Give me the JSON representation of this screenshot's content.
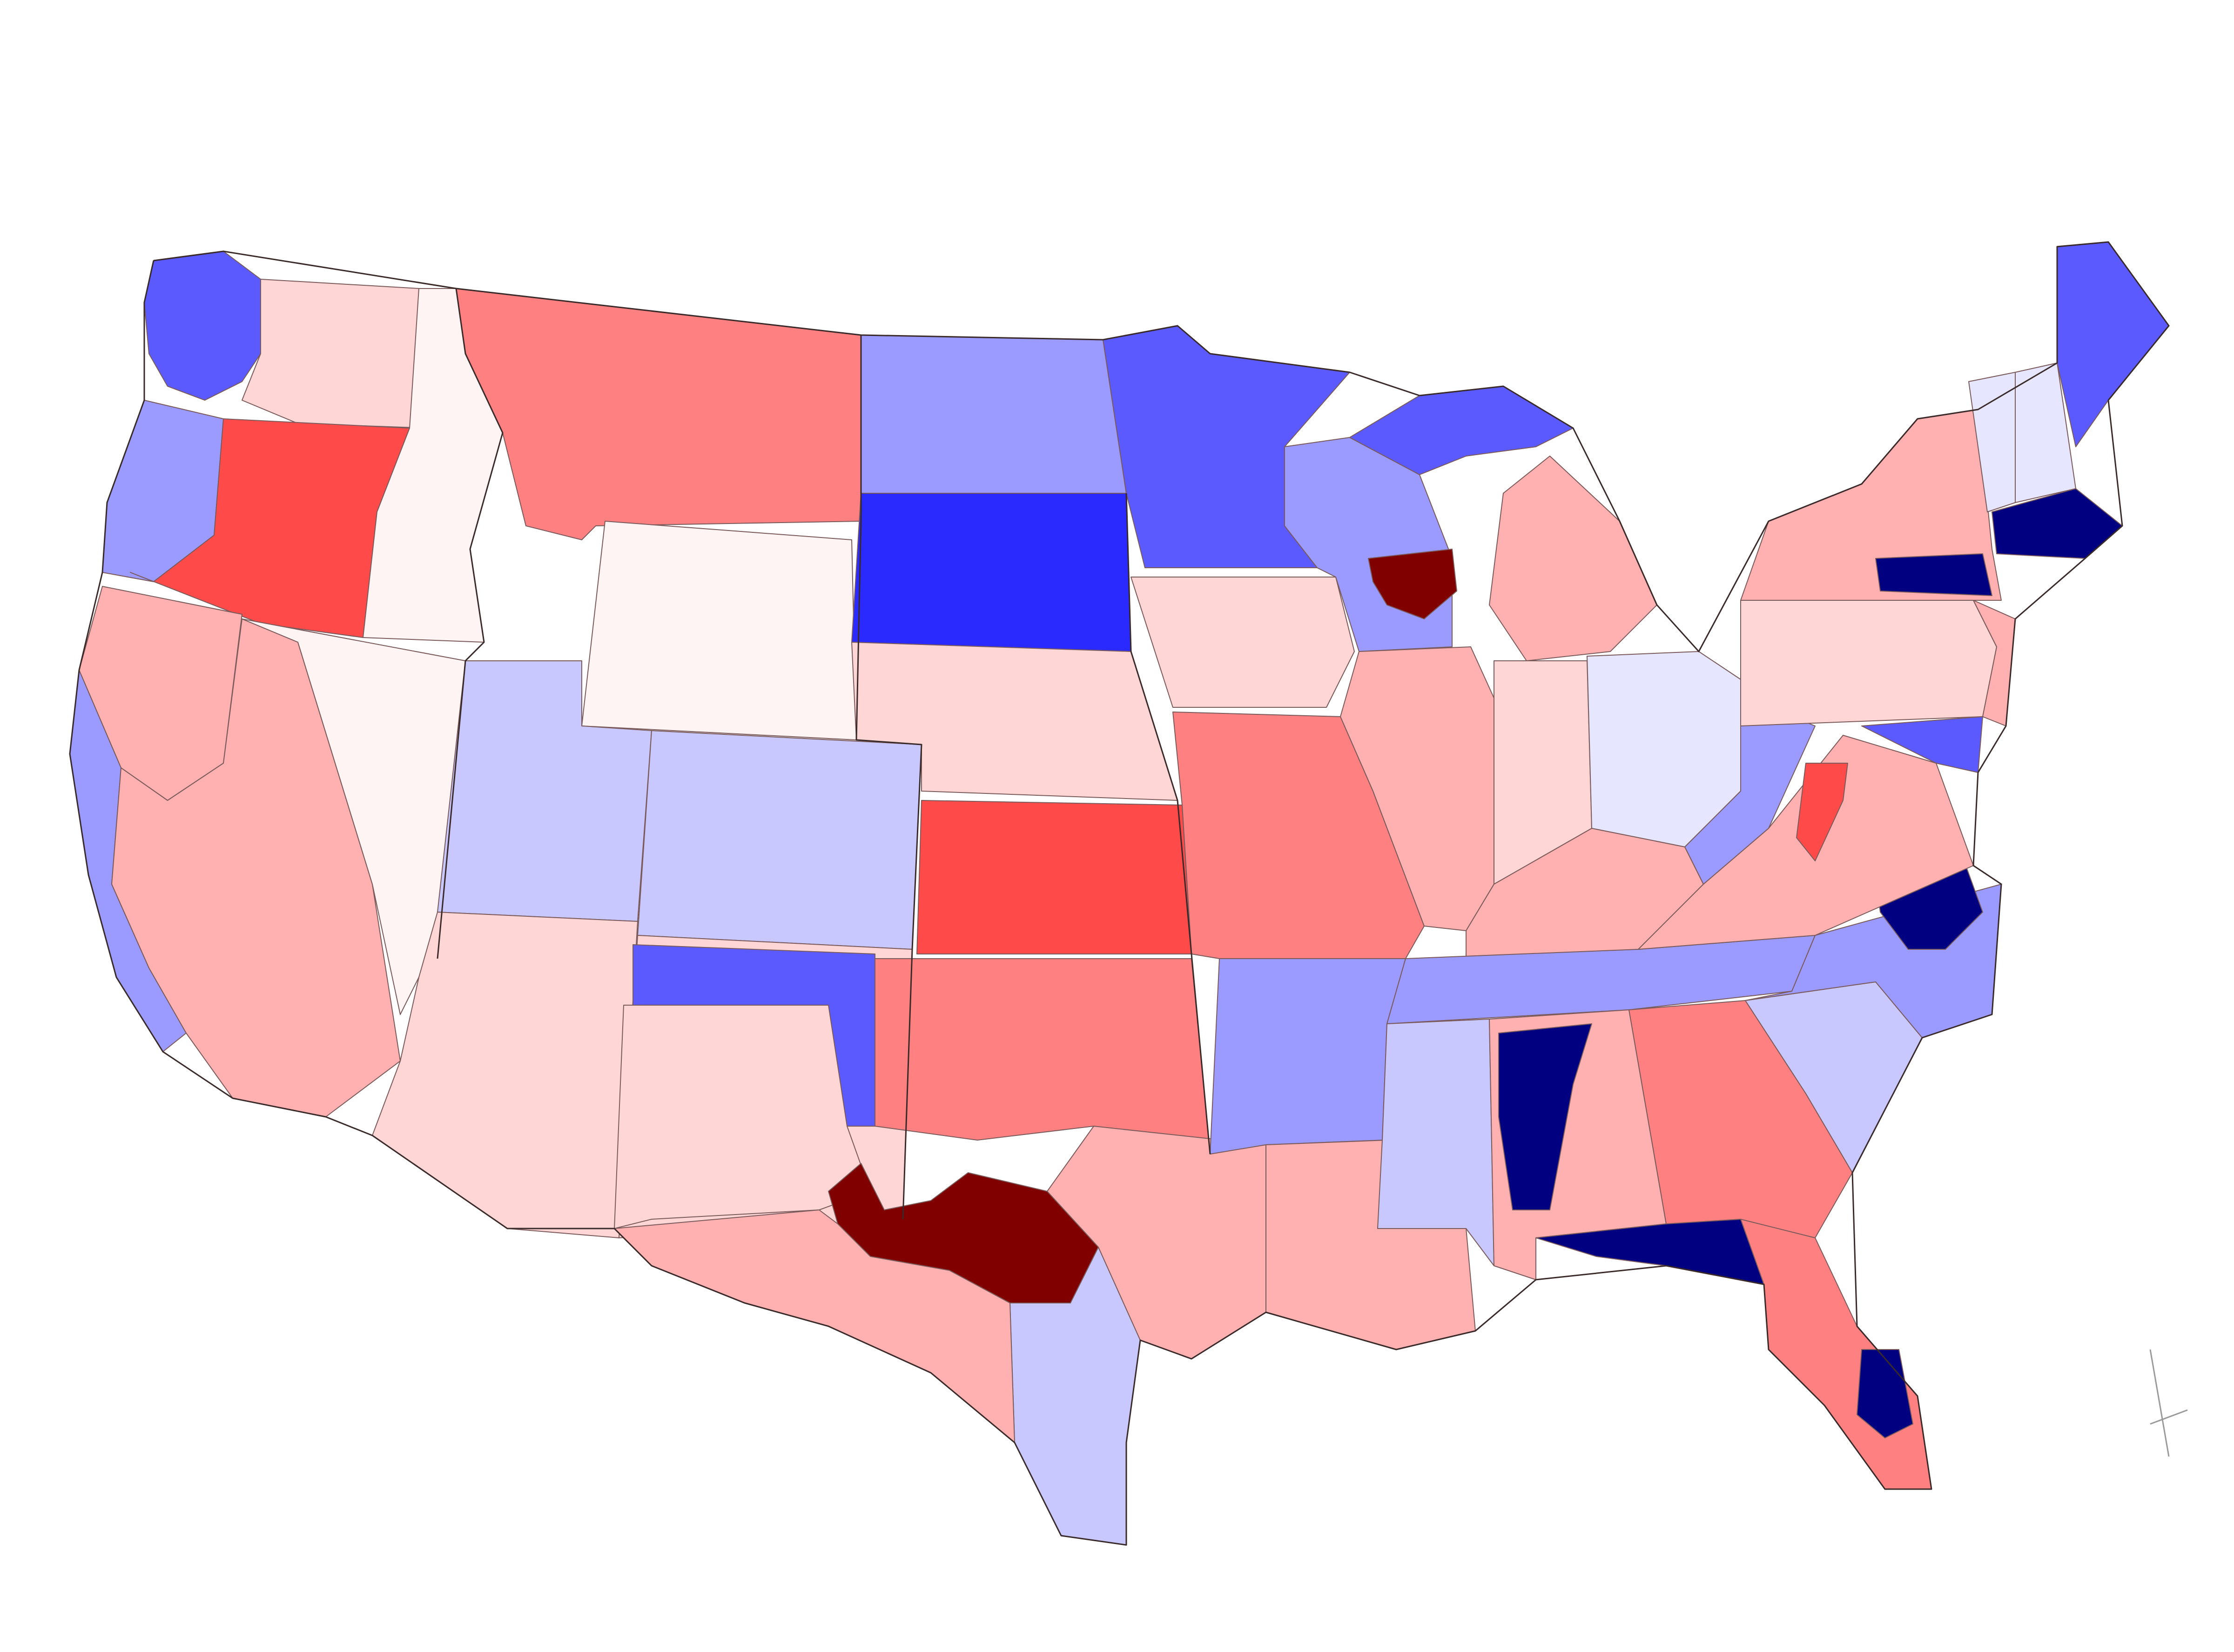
{
  "map": {
    "colors": {
      "deep_blue": "#000080",
      "blue": "#2a2aff",
      "mid_blue": "#5a5aff",
      "soft_blue": "#9a9aff",
      "light_blue": "#c8c8ff",
      "pale_blue": "#e6e6ff",
      "neutral": "#fff4f4",
      "pale_red": "#ffd6d6",
      "light_red": "#ffb0b0",
      "mid_red": "#ff8080",
      "red": "#ff4a4a",
      "deep_red": "#800000",
      "border": "#3a2a2a"
    },
    "regions": [
      {
        "name": "washington-west",
        "shade": "mid_blue"
      },
      {
        "name": "washington-east",
        "shade": "pale_red"
      },
      {
        "name": "oregon-coast",
        "shade": "soft_blue"
      },
      {
        "name": "oregon-east",
        "shade": "red"
      },
      {
        "name": "california-north",
        "shade": "light_red"
      },
      {
        "name": "california-coast",
        "shade": "soft_blue"
      },
      {
        "name": "california-bay-area",
        "shade": "deep_blue"
      },
      {
        "name": "california-south",
        "shade": "light_red"
      },
      {
        "name": "idaho",
        "shade": "neutral"
      },
      {
        "name": "nevada",
        "shade": "neutral"
      },
      {
        "name": "montana",
        "shade": "mid_red"
      },
      {
        "name": "wyoming",
        "shade": "neutral"
      },
      {
        "name": "utah",
        "shade": "light_blue"
      },
      {
        "name": "arizona",
        "shade": "pale_red"
      },
      {
        "name": "colorado",
        "shade": "light_blue"
      },
      {
        "name": "new-mexico",
        "shade": "pale_red"
      },
      {
        "name": "north-dakota",
        "shade": "soft_blue"
      },
      {
        "name": "south-dakota",
        "shade": "blue"
      },
      {
        "name": "nebraska",
        "shade": "pale_red"
      },
      {
        "name": "kansas",
        "shade": "red"
      },
      {
        "name": "oklahoma-panhandle",
        "shade": "mid_blue"
      },
      {
        "name": "oklahoma",
        "shade": "mid_red"
      },
      {
        "name": "texas-panhandle",
        "shade": "pale_red"
      },
      {
        "name": "texas-central",
        "shade": "deep_red"
      },
      {
        "name": "texas-south",
        "shade": "light_blue"
      },
      {
        "name": "texas-east",
        "shade": "light_red"
      },
      {
        "name": "minnesota",
        "shade": "mid_blue"
      },
      {
        "name": "iowa",
        "shade": "pale_red"
      },
      {
        "name": "missouri",
        "shade": "mid_red"
      },
      {
        "name": "arkansas",
        "shade": "soft_blue"
      },
      {
        "name": "louisiana",
        "shade": "light_red"
      },
      {
        "name": "wisconsin",
        "shade": "soft_blue"
      },
      {
        "name": "wisconsin-east",
        "shade": "deep_red"
      },
      {
        "name": "illinois",
        "shade": "light_red"
      },
      {
        "name": "michigan-upper",
        "shade": "mid_blue"
      },
      {
        "name": "michigan-lower",
        "shade": "light_red"
      },
      {
        "name": "indiana",
        "shade": "pale_red"
      },
      {
        "name": "ohio",
        "shade": "pale_blue"
      },
      {
        "name": "kentucky",
        "shade": "light_red"
      },
      {
        "name": "tennessee",
        "shade": "soft_blue"
      },
      {
        "name": "mississippi",
        "shade": "light_blue"
      },
      {
        "name": "alabama",
        "shade": "light_red"
      },
      {
        "name": "alabama-north",
        "shade": "deep_blue"
      },
      {
        "name": "georgia",
        "shade": "mid_red"
      },
      {
        "name": "florida",
        "shade": "mid_red"
      },
      {
        "name": "florida-north",
        "shade": "deep_blue"
      },
      {
        "name": "florida-south",
        "shade": "deep_blue"
      },
      {
        "name": "south-carolina",
        "shade": "light_blue"
      },
      {
        "name": "north-carolina",
        "shade": "soft_blue"
      },
      {
        "name": "north-carolina-east",
        "shade": "deep_blue"
      },
      {
        "name": "virginia",
        "shade": "light_red"
      },
      {
        "name": "virginia-west",
        "shade": "red"
      },
      {
        "name": "west-virginia",
        "shade": "soft_blue"
      },
      {
        "name": "pennsylvania",
        "shade": "pale_red"
      },
      {
        "name": "new-york",
        "shade": "light_red"
      },
      {
        "name": "vermont",
        "shade": "pale_blue"
      },
      {
        "name": "new-hampshire",
        "shade": "pale_blue"
      },
      {
        "name": "maine",
        "shade": "mid_blue"
      },
      {
        "name": "massachusetts",
        "shade": "deep_blue"
      },
      {
        "name": "connecticut",
        "shade": "deep_blue"
      },
      {
        "name": "new-jersey",
        "shade": "light_red"
      },
      {
        "name": "maryland",
        "shade": "mid_blue"
      }
    ]
  }
}
